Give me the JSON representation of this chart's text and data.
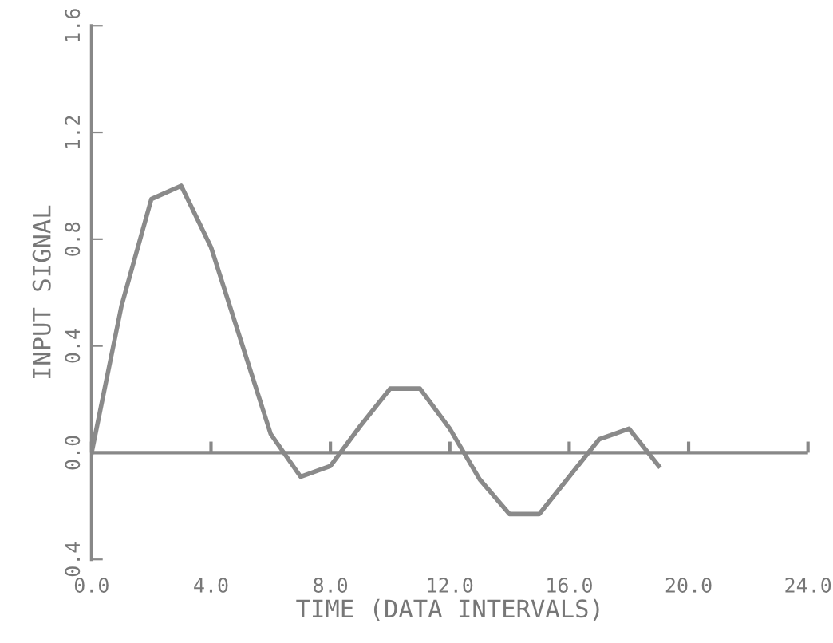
{
  "chart_data": {
    "type": "line",
    "xlabel": "TIME (DATA INTERVALS)",
    "ylabel": "INPUT SIGNAL",
    "x": [
      0,
      1,
      2,
      3,
      4,
      5,
      6,
      7,
      8,
      9,
      10,
      11,
      12,
      13,
      14,
      15,
      16,
      17,
      18,
      19
    ],
    "series": [
      {
        "color": "#8a8a8a",
        "values": [
          0,
          0.55,
          0.95,
          1.0,
          0.77,
          0.42,
          0.07,
          -0.09,
          -0.05,
          0.1,
          0.24,
          0.24,
          0.09,
          -0.1,
          -0.23,
          -0.23,
          -0.09,
          0.05,
          0.09,
          -0.05
        ]
      }
    ],
    "xlim": [
      0,
      24
    ],
    "xticks": [
      {
        "value": 0,
        "label": "0.0"
      },
      {
        "value": 4,
        "label": "4.0"
      },
      {
        "value": 8,
        "label": "8.0"
      },
      {
        "value": 12,
        "label": "12.0"
      },
      {
        "value": 16,
        "label": "16.0"
      },
      {
        "value": 20,
        "label": "20.0"
      },
      {
        "value": 24,
        "label": "24.0"
      }
    ],
    "ylim": [
      -0.4,
      1.6
    ],
    "yticks": [
      {
        "value": -0.4,
        "label": "0.4"
      },
      {
        "value": 0,
        "label": "0.0"
      },
      {
        "value": 0.4,
        "label": "0.4"
      },
      {
        "value": 0.8,
        "label": "0.8"
      },
      {
        "value": 1.2,
        "label": "1.2"
      },
      {
        "value": 1.6,
        "label": "1.6"
      }
    ],
    "ref_lines": [
      {
        "axis": "y",
        "value": 0,
        "color": "#888888",
        "line_style": "solid"
      }
    ],
    "grid": false,
    "legend": false,
    "marker": "none",
    "line_style": "solid"
  }
}
